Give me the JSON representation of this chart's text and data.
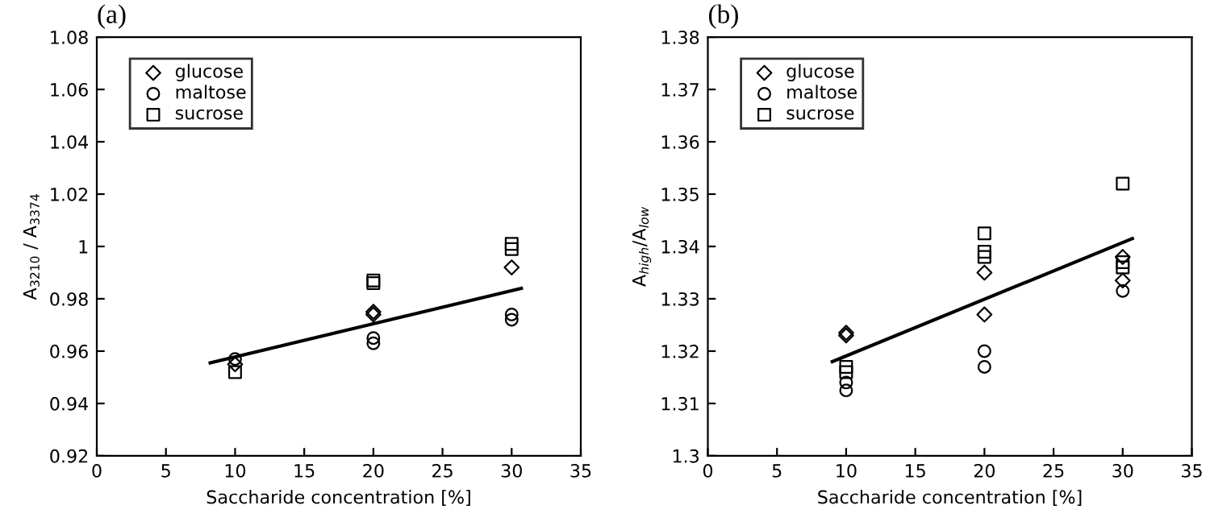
{
  "chart_data": [
    {
      "type": "scatter",
      "title": "(a)",
      "xlabel": "Saccharide concentration [%]",
      "ylabel": "A$_{3210}$ / A$_{3374}$",
      "xlim": [
        0,
        35
      ],
      "xticks": [
        0,
        5,
        10,
        15,
        20,
        25,
        30,
        35
      ],
      "ylim": [
        0.92,
        1.08
      ],
      "yticks": [
        0.92,
        0.94,
        0.96,
        0.98,
        1,
        1.02,
        1.04,
        1.06,
        1.08
      ],
      "grid": false,
      "legend": "top left",
      "series": [
        {
          "name": "glucose",
          "color": "#000000",
          "marker": "diamond",
          "x": [
            10,
            20,
            20,
            30
          ],
          "values": [
            0.955,
            0.975,
            0.974,
            0.992
          ]
        },
        {
          "name": "maltose",
          "color": "#000000",
          "marker": "circle",
          "x": [
            10,
            20,
            20,
            30,
            30
          ],
          "values": [
            0.957,
            0.965,
            0.963,
            0.974,
            0.972
          ]
        },
        {
          "name": "sucrose",
          "color": "#000000",
          "marker": "square",
          "x": [
            10,
            20,
            20,
            30,
            30
          ],
          "values": [
            0.952,
            0.987,
            0.986,
            1.001,
            0.999
          ]
        },
        {
          "type": "line",
          "color": "#000000",
          "marker": "none",
          "x": [
            8.2,
            30.7
          ],
          "values": [
            0.9555,
            0.984
          ]
        }
      ]
    },
    {
      "type": "scatter",
      "title": "(b)",
      "xlabel": "Saccharide concentration [%]",
      "ylabel": "A$_{high}$/A$_{low}$",
      "xlim": [
        0,
        35
      ],
      "xticks": [
        0,
        5,
        10,
        15,
        20,
        25,
        30,
        35
      ],
      "ylim": [
        1.3,
        1.38
      ],
      "yticks": [
        1.3,
        1.31,
        1.32,
        1.33,
        1.34,
        1.35,
        1.36,
        1.37,
        1.38
      ],
      "grid": false,
      "legend": "top left",
      "series": [
        {
          "name": "glucose",
          "color": "#000000",
          "marker": "diamond",
          "x": [
            10,
            10,
            20,
            20,
            30,
            30
          ],
          "values": [
            1.3235,
            1.323,
            1.335,
            1.327,
            1.338,
            1.3335
          ]
        },
        {
          "name": "maltose",
          "color": "#000000",
          "marker": "circle",
          "x": [
            10,
            10,
            20,
            20,
            30
          ],
          "values": [
            1.314,
            1.3125,
            1.32,
            1.317,
            1.3315
          ]
        },
        {
          "name": "sucrose",
          "color": "#000000",
          "marker": "square",
          "x": [
            10,
            10,
            20,
            20,
            20,
            30,
            30,
            30
          ],
          "values": [
            1.317,
            1.316,
            1.3425,
            1.339,
            1.338,
            1.352,
            1.337,
            1.336
          ]
        },
        {
          "type": "line",
          "color": "#000000",
          "marker": "none",
          "x": [
            9,
            30.7
          ],
          "values": [
            1.318,
            1.3415
          ]
        }
      ]
    }
  ]
}
